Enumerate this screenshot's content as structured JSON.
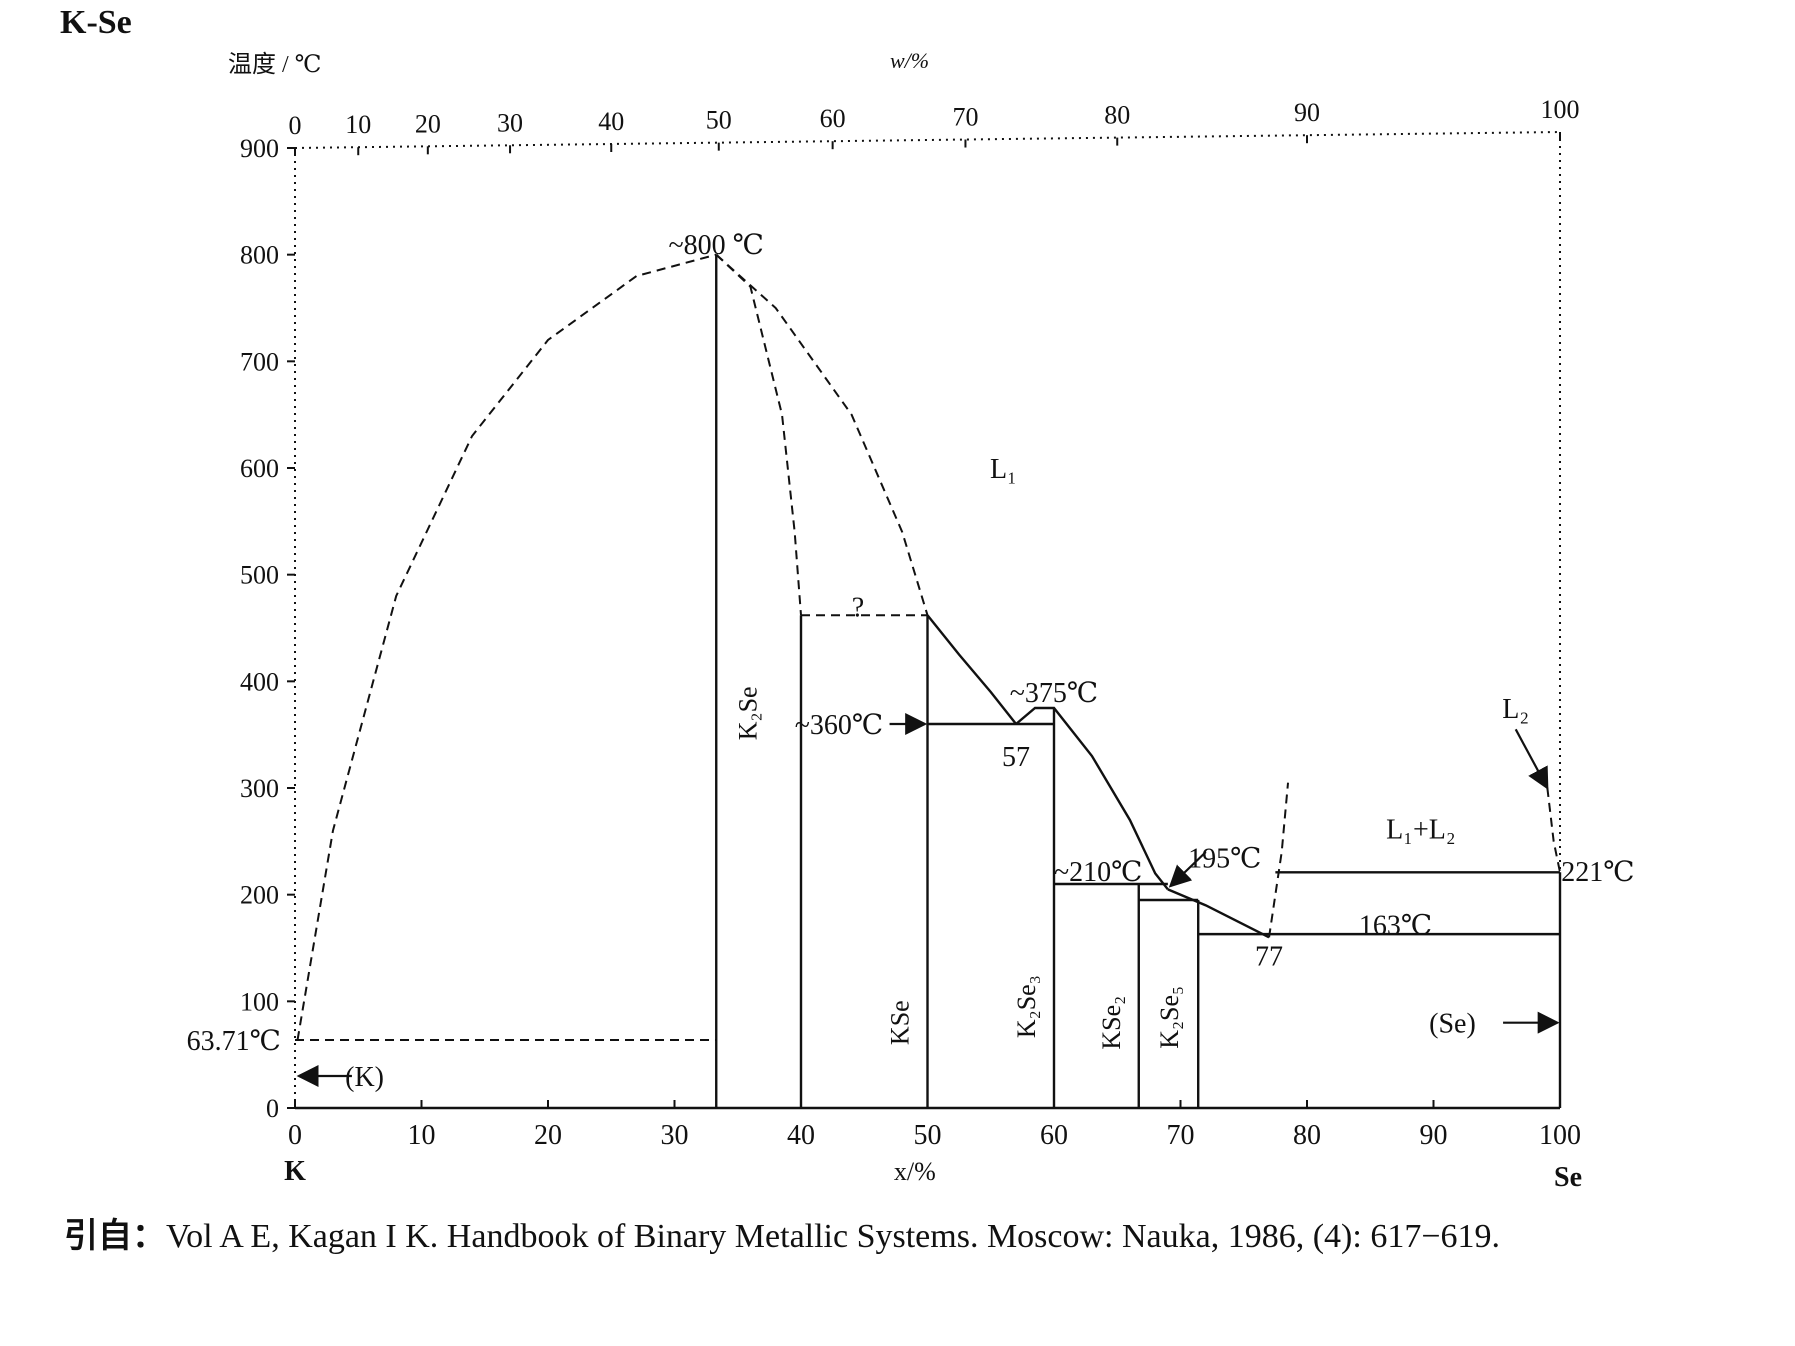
{
  "chart_data": {
    "type": "line",
    "title": "K-Se",
    "top_axis_label": "温度 / ℃",
    "top_axis_unit": "w/%",
    "xlabel": "x/%",
    "ylabel": "",
    "xlim": [
      0,
      100
    ],
    "ylim": [
      0,
      900
    ],
    "x_ticks": [
      "0",
      "10",
      "20",
      "30",
      "40",
      "50",
      "60",
      "70",
      "80",
      "90",
      "100"
    ],
    "y_ticks": [
      "0",
      "100",
      "200",
      "300",
      "400",
      "500",
      "600",
      "700",
      "800",
      "900"
    ],
    "top_ticks": [
      {
        "x": 0,
        "label": "0"
      },
      {
        "x": 5,
        "label": "10"
      },
      {
        "x": 10.5,
        "label": "20"
      },
      {
        "x": 17,
        "label": "30"
      },
      {
        "x": 25,
        "label": "40"
      },
      {
        "x": 33.5,
        "label": "50"
      },
      {
        "x": 42.5,
        "label": "60"
      },
      {
        "x": 53,
        "label": "70"
      },
      {
        "x": 65,
        "label": "80"
      },
      {
        "x": 80,
        "label": "90"
      },
      {
        "x": 100,
        "label": "100"
      }
    ],
    "left_component": "K",
    "right_component": "Se",
    "series": [
      {
        "style": "dashed",
        "points": [
          [
            0.2,
            63.7
          ],
          [
            3,
            260
          ],
          [
            8,
            480
          ],
          [
            14,
            630
          ],
          [
            20,
            720
          ],
          [
            27,
            780
          ],
          [
            33.3,
            800
          ]
        ]
      },
      {
        "style": "dashed",
        "points": [
          [
            33.3,
            800
          ],
          [
            36,
            770
          ],
          [
            38.5,
            650
          ],
          [
            39.5,
            540
          ],
          [
            40,
            462
          ]
        ]
      },
      {
        "style": "dashed",
        "points": [
          [
            33.3,
            800
          ],
          [
            38,
            750
          ],
          [
            44,
            650
          ],
          [
            48,
            540
          ],
          [
            50,
            462
          ]
        ]
      },
      {
        "style": "dashed",
        "points": [
          [
            40,
            462
          ],
          [
            50,
            462
          ]
        ]
      },
      {
        "style": "dashed",
        "points": [
          [
            0,
            63.7
          ],
          [
            33.3,
            63.7
          ]
        ]
      },
      {
        "style": "solid",
        "points": [
          [
            50,
            462
          ],
          [
            52.5,
            425
          ],
          [
            55,
            390
          ],
          [
            57,
            360
          ]
        ]
      },
      {
        "style": "solid",
        "points": [
          [
            57,
            360
          ],
          [
            58.5,
            375
          ],
          [
            60,
            375
          ],
          [
            63,
            330
          ],
          [
            66,
            270
          ],
          [
            68,
            220
          ],
          [
            69,
            205
          ]
        ]
      },
      {
        "style": "solid",
        "points": [
          [
            69,
            205
          ],
          [
            72,
            190
          ],
          [
            74.5,
            175
          ],
          [
            77,
            160
          ]
        ]
      },
      {
        "style": "dashed",
        "points": [
          [
            77,
            160
          ],
          [
            77.5,
            200
          ],
          [
            78,
            240
          ],
          [
            78.5,
            305
          ]
        ]
      },
      {
        "style": "dashed",
        "points": [
          [
            99,
            300
          ],
          [
            99.5,
            250
          ],
          [
            100,
            221
          ]
        ]
      },
      {
        "style": "solid",
        "points": [
          [
            50,
            360
          ],
          [
            60,
            360
          ]
        ]
      },
      {
        "style": "solid",
        "points": [
          [
            60,
            210
          ],
          [
            69,
            210
          ]
        ]
      },
      {
        "style": "solid",
        "points": [
          [
            66.7,
            195
          ],
          [
            71.4,
            195
          ]
        ]
      },
      {
        "style": "solid",
        "points": [
          [
            71.4,
            163
          ],
          [
            100,
            163
          ]
        ]
      },
      {
        "style": "solid",
        "points": [
          [
            77.5,
            221
          ],
          [
            100,
            221
          ]
        ]
      },
      {
        "style": "solid",
        "points": [
          [
            33.3,
            0
          ],
          [
            33.3,
            800
          ]
        ]
      },
      {
        "style": "solid",
        "points": [
          [
            40,
            0
          ],
          [
            40,
            462
          ]
        ]
      },
      {
        "style": "solid",
        "points": [
          [
            50,
            0
          ],
          [
            50,
            462
          ]
        ]
      },
      {
        "style": "solid",
        "points": [
          [
            60,
            0
          ],
          [
            60,
            375
          ]
        ]
      },
      {
        "style": "solid",
        "points": [
          [
            66.7,
            0
          ],
          [
            66.7,
            210
          ]
        ]
      },
      {
        "style": "solid",
        "points": [
          [
            71.4,
            0
          ],
          [
            71.4,
            195
          ]
        ]
      },
      {
        "style": "solid",
        "points": [
          [
            100,
            0
          ],
          [
            100,
            221
          ]
        ]
      }
    ],
    "annotations": [
      {
        "text": "~800 ℃",
        "x": 33.3,
        "y": 810
      },
      {
        "text": "L₁",
        "x": 56,
        "y": 600
      },
      {
        "text": "?",
        "x": 44.5,
        "y": 470
      },
      {
        "text": "~375℃",
        "x": 60,
        "y": 390
      },
      {
        "text": "~360℃",
        "x": 43,
        "y": 360
      },
      {
        "text": "57",
        "x": 57,
        "y": 330
      },
      {
        "text": "~210℃",
        "x": 63.5,
        "y": 222
      },
      {
        "text": "195℃",
        "x": 73.5,
        "y": 235
      },
      {
        "text": "163℃",
        "x": 87,
        "y": 172
      },
      {
        "text": "221℃",
        "x": 103,
        "y": 222
      },
      {
        "text": "77",
        "x": 77,
        "y": 143
      },
      {
        "text": "L₁+L₂",
        "x": 89,
        "y": 262
      },
      {
        "text": "L₂",
        "x": 96.5,
        "y": 375
      },
      {
        "text": "(K)",
        "x": 5.5,
        "y": 30
      },
      {
        "text": "(Se)",
        "x": 91.5,
        "y": 80
      },
      {
        "text": "63.71℃",
        "x": -5,
        "y": 63.7
      }
    ],
    "phases": [
      {
        "text": "K₂Se",
        "x": 36.5,
        "y": 370
      },
      {
        "text": "KSe",
        "x": 48.5,
        "y": 80
      },
      {
        "text": "K₂Se₃",
        "x": 58.5,
        "y": 95
      },
      {
        "text": "KSe₂",
        "x": 65.2,
        "y": 80
      },
      {
        "text": "K₂Se₅",
        "x": 69.8,
        "y": 85
      }
    ],
    "grid": false,
    "legend": "none"
  },
  "citation": {
    "prefix": "引自：",
    "text": "Vol A E, Kagan I K.  Handbook of Binary Metallic Systems. Moscow: Nauka, 1986, (4): 617−619."
  }
}
